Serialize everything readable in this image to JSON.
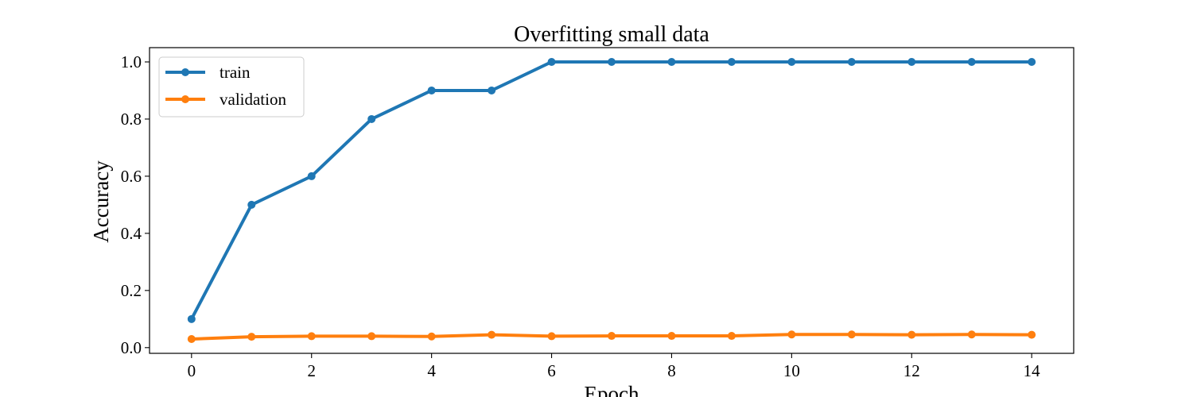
{
  "chart_data": {
    "type": "line",
    "title": "Overfitting small data",
    "xlabel": "Epoch",
    "ylabel": "Accuracy",
    "xlim": [
      -0.7,
      14.7
    ],
    "ylim": [
      -0.02,
      1.05
    ],
    "x": [
      0,
      1,
      2,
      3,
      4,
      5,
      6,
      7,
      8,
      9,
      10,
      11,
      12,
      13,
      14
    ],
    "xticks": [
      "0",
      "2",
      "4",
      "6",
      "8",
      "10",
      "12",
      "14"
    ],
    "xtick_values": [
      0,
      2,
      4,
      6,
      8,
      10,
      12,
      14
    ],
    "yticks": [
      "0.0",
      "0.2",
      "0.4",
      "0.6",
      "0.8",
      "1.0"
    ],
    "ytick_values": [
      0.0,
      0.2,
      0.4,
      0.6,
      0.8,
      1.0
    ],
    "grid": false,
    "legend_position": "upper-left",
    "series": [
      {
        "name": "train",
        "color": "#1f77b4",
        "values": [
          0.1,
          0.5,
          0.6,
          0.8,
          0.9,
          0.9,
          1.0,
          1.0,
          1.0,
          1.0,
          1.0,
          1.0,
          1.0,
          1.0,
          1.0
        ]
      },
      {
        "name": "validation",
        "color": "#ff7f0e",
        "values": [
          0.03,
          0.038,
          0.04,
          0.04,
          0.039,
          0.045,
          0.04,
          0.041,
          0.041,
          0.041,
          0.046,
          0.046,
          0.045,
          0.046,
          0.045
        ]
      }
    ]
  }
}
